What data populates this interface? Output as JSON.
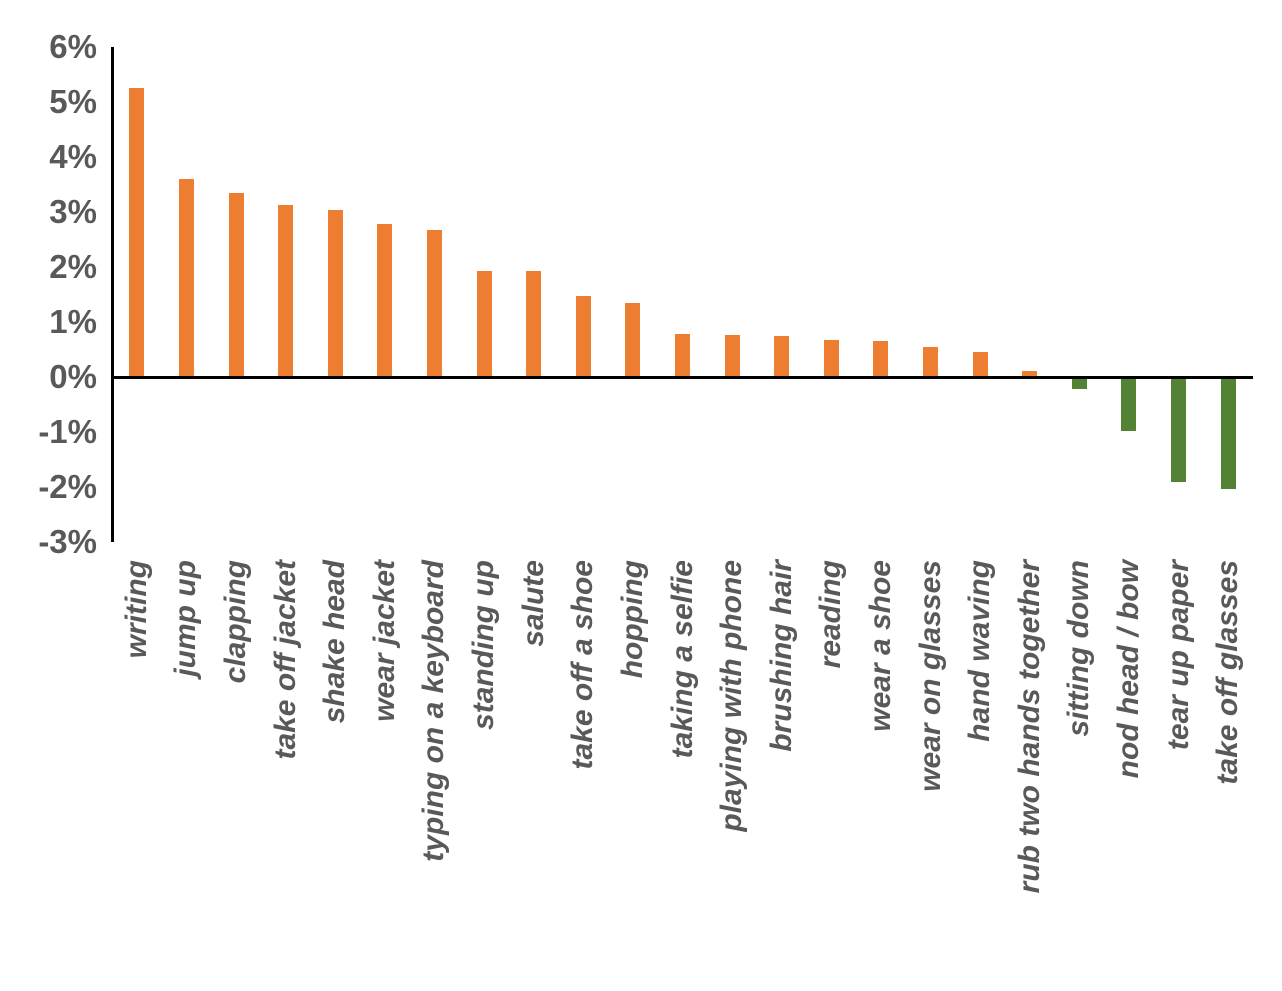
{
  "chart_data": {
    "type": "bar",
    "title": "",
    "xlabel": "",
    "ylabel": "",
    "categories": [
      "writing",
      "jump up",
      "clapping",
      "take off jacket",
      "shake head",
      "wear jacket",
      "typing on a keyboard",
      "standing up",
      "salute",
      "take off a shoe",
      "hopping",
      "taking a selfie",
      "playing with phone",
      "brushing hair",
      "reading",
      "wear a shoe",
      "wear on glasses",
      "hand waving",
      "rub two hands together",
      "sitting down",
      "nod head / bow",
      "tear up paper",
      "take off glasses"
    ],
    "values": [
      5.25,
      3.6,
      3.35,
      3.13,
      3.03,
      2.79,
      2.68,
      1.92,
      1.92,
      1.47,
      1.34,
      0.79,
      0.77,
      0.75,
      0.68,
      0.66,
      0.55,
      0.46,
      0.11,
      -0.21,
      -0.99,
      -1.9,
      -2.03
    ],
    "value_unit": "%",
    "y_tick_labels": [
      "6%",
      "5%",
      "4%",
      "3%",
      "2%",
      "1%",
      "0%",
      "-1%",
      "-2%",
      "-3%"
    ],
    "y_tick_values": [
      6,
      5,
      4,
      3,
      2,
      1,
      0,
      -1,
      -2,
      -3
    ],
    "ylim": [
      -3,
      6
    ],
    "grid": false,
    "legend": null,
    "colors": {
      "positive_bar": "#ED7D31",
      "negative_bar": "#548235",
      "axis_line": "#000000",
      "tick_label": "#595959"
    }
  }
}
